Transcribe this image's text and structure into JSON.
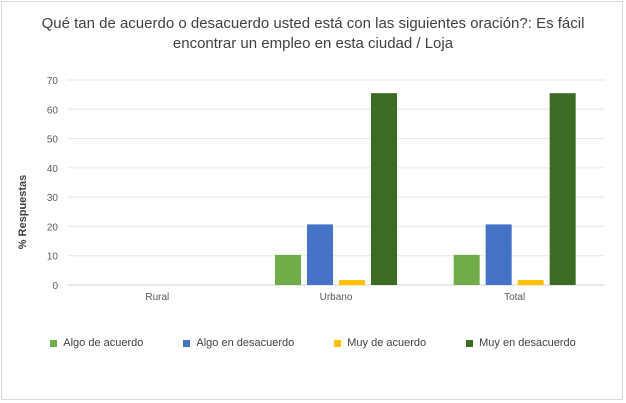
{
  "chart_data": {
    "type": "bar",
    "title": "Qué tan de acuerdo o desacuerdo usted está con las siguientes oración?: Es fácil encontrar un empleo en esta ciudad / Loja",
    "xlabel": "",
    "ylabel": "% Respuestas",
    "ylim": [
      0,
      70
    ],
    "yticks": [
      0,
      10,
      20,
      30,
      40,
      50,
      60,
      70
    ],
    "grid": true,
    "legend_position": "bottom",
    "categories": [
      "Rural",
      "Urbano",
      "Total"
    ],
    "series": [
      {
        "name": "Algo de acuerdo",
        "color": "#70ad47",
        "values": [
          0,
          10.3,
          10.3
        ]
      },
      {
        "name": "Algo en desacuerdo",
        "color": "#4472c4",
        "values": [
          0,
          20.7,
          20.7
        ]
      },
      {
        "name": "Muy de acuerdo",
        "color": "#ffc000",
        "values": [
          0,
          1.7,
          1.7
        ]
      },
      {
        "name": "Muy en desacuerdo",
        "color": "#3c6b26",
        "values": [
          0,
          65.5,
          65.5
        ]
      }
    ]
  }
}
